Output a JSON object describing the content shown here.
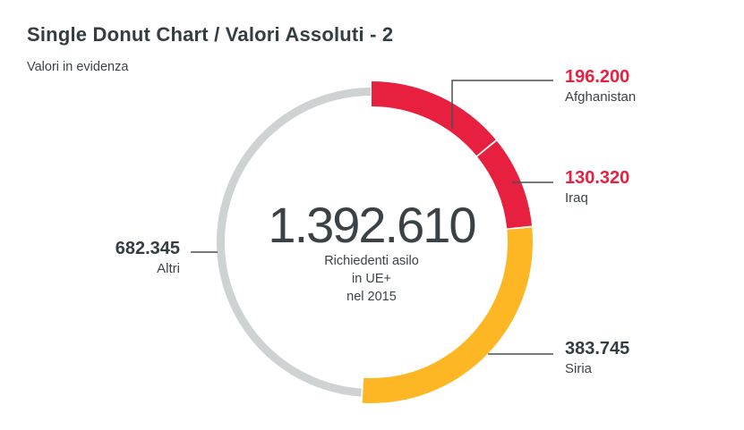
{
  "header": {
    "title": "Single Donut Chart / Valori Assoluti - 2",
    "subtitle": "Valori in evidenza"
  },
  "center": {
    "total": "1.392.610",
    "caption_lines": [
      "Richiedenti asilo",
      "in UE+",
      "nel 2015"
    ]
  },
  "colors": {
    "red": "#e8203f",
    "yellow": "#fdb724",
    "gray": "#cfd2d2",
    "line": "#4a5055",
    "text_dark": "#343d42"
  },
  "chart_data": {
    "type": "pie",
    "variant": "donut",
    "title": "Single Donut Chart / Valori Assoluti - 2",
    "subtitle": "Valori in evidenza",
    "slices": [
      {
        "label": "Afghanistan",
        "value": 196200,
        "display": "196.200",
        "color": "#e8203f",
        "value_color": "#e8203f"
      },
      {
        "label": "Iraq",
        "value": 130320,
        "display": "130.320",
        "color": "#e8203f",
        "value_color": "#e8203f"
      },
      {
        "label": "Siria",
        "value": 383745,
        "display": "383.745",
        "color": "#fdb724",
        "value_color": "#343d42"
      },
      {
        "label": "Altri",
        "value": 682345,
        "display": "682.345",
        "color": "#cfd2d2",
        "value_color": "#343d42"
      }
    ]
  }
}
